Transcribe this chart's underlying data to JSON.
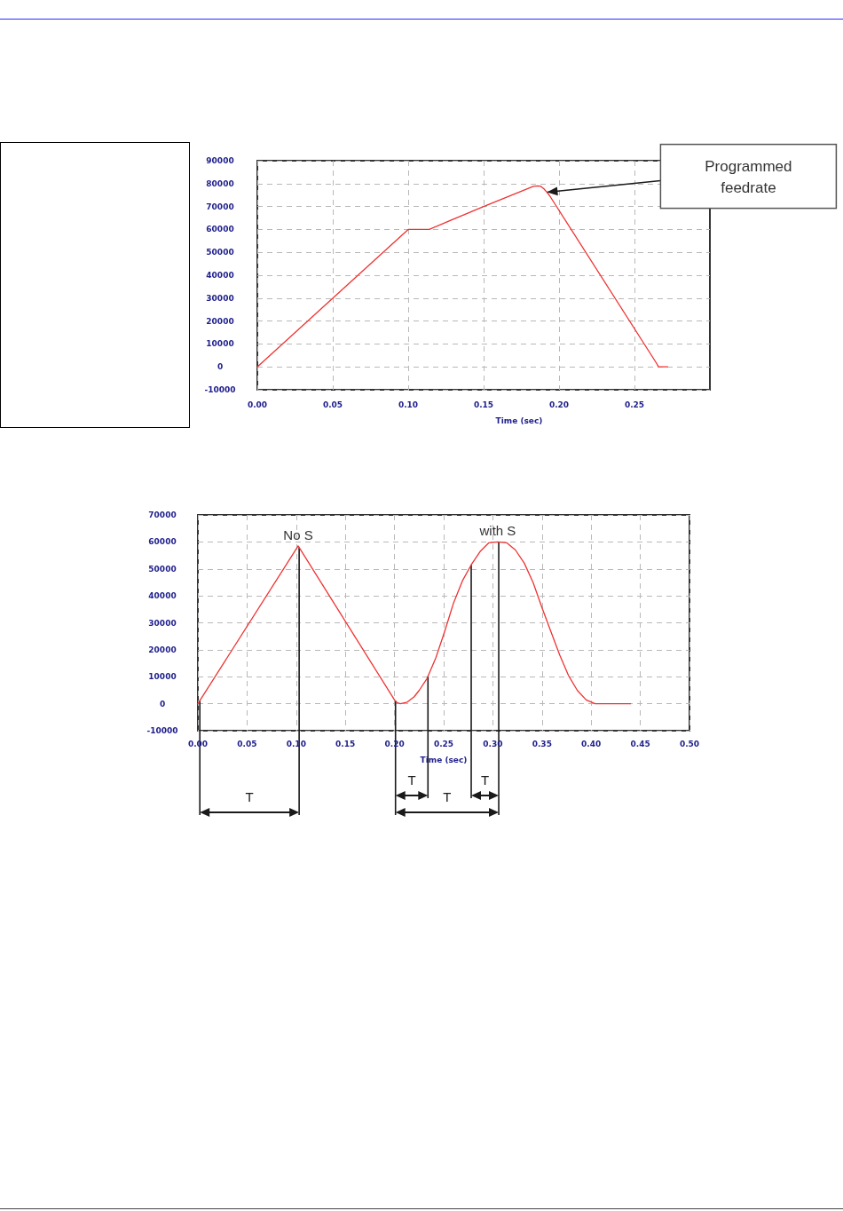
{
  "chart_data": [
    {
      "type": "line",
      "xlabel": "Time (sec)",
      "color": "#f03232",
      "x": [
        0,
        0.1,
        0.114,
        0.13,
        0.15,
        0.183,
        0.186,
        0.188,
        0.19,
        0.192,
        0.194,
        0.264,
        0.266,
        0.272
      ],
      "values": [
        0,
        60000,
        60000,
        64500,
        70000,
        78800,
        79000,
        78800,
        77700,
        76200,
        74500,
        2200,
        0,
        0
      ],
      "xlim": [
        0,
        0.3
      ],
      "ylim": [
        -10000,
        90000
      ],
      "xticks": [
        {
          "value": 0,
          "label": "0.00"
        },
        {
          "value": 0.05,
          "label": "0.05"
        },
        {
          "value": 0.1,
          "label": "0.10"
        },
        {
          "value": 0.15,
          "label": "0.15"
        },
        {
          "value": 0.2,
          "label": "0.20"
        },
        {
          "value": 0.25,
          "label": "0.25"
        }
      ],
      "yticks": [
        -10000,
        0,
        10000,
        20000,
        30000,
        40000,
        50000,
        60000,
        70000,
        80000,
        90000
      ],
      "grid": true,
      "annotations": [
        {
          "text": "Programmed feedrate",
          "x": 0.192,
          "y": 76200
        }
      ]
    },
    {
      "type": "line",
      "xlabel": "Time (sec)",
      "color": "#f03232",
      "x": [
        0,
        0.102,
        0.2,
        0.203,
        0.206,
        0.213,
        0.22,
        0.225,
        0.233,
        0.242,
        0.251,
        0.26,
        0.269,
        0.278,
        0.287,
        0.296,
        0.305,
        0.314,
        0.323,
        0.332,
        0.341,
        0.35,
        0.359,
        0.368,
        0.377,
        0.386,
        0.395,
        0.404,
        0.44
      ],
      "values": [
        0,
        58500,
        1400,
        300,
        0,
        600,
        2600,
        4900,
        9300,
        17000,
        26800,
        37300,
        45500,
        51500,
        56400,
        59700,
        60000,
        59700,
        57000,
        52100,
        44900,
        35600,
        26800,
        18100,
        10400,
        4900,
        1400,
        0,
        0
      ],
      "xlim": [
        0,
        0.5
      ],
      "ylim": [
        -10000,
        70000
      ],
      "xticks": [
        {
          "value": 0,
          "label": "0.00"
        },
        {
          "value": 0.05,
          "label": "0.05"
        },
        {
          "value": 0.1,
          "label": "0.10"
        },
        {
          "value": 0.15,
          "label": "0.15"
        },
        {
          "value": 0.2,
          "label": "0.20"
        },
        {
          "value": 0.25,
          "label": "0.25"
        },
        {
          "value": 0.3,
          "label": "0.30"
        },
        {
          "value": 0.35,
          "label": "0.35"
        },
        {
          "value": 0.4,
          "label": "0.40"
        },
        {
          "value": 0.45,
          "label": "0.45"
        },
        {
          "value": 0.5,
          "label": "0.50"
        }
      ],
      "yticks": [
        -10000,
        0,
        10000,
        20000,
        30000,
        40000,
        50000,
        60000,
        70000
      ],
      "grid": true,
      "ref_lines": [
        {
          "axis": "x",
          "value": 0.002
        },
        {
          "axis": "x",
          "value": 0.103
        },
        {
          "axis": "x",
          "value": 0.201
        },
        {
          "axis": "x",
          "value": 0.234
        },
        {
          "axis": "x",
          "value": 0.278
        },
        {
          "axis": "x",
          "value": 0.306
        }
      ],
      "annotations": [
        {
          "text": "No S",
          "x": 0.102,
          "y": 58500
        },
        {
          "text": "with S",
          "x": 0.305,
          "y": 60000
        },
        "T",
        "T",
        "T",
        "T"
      ]
    }
  ]
}
